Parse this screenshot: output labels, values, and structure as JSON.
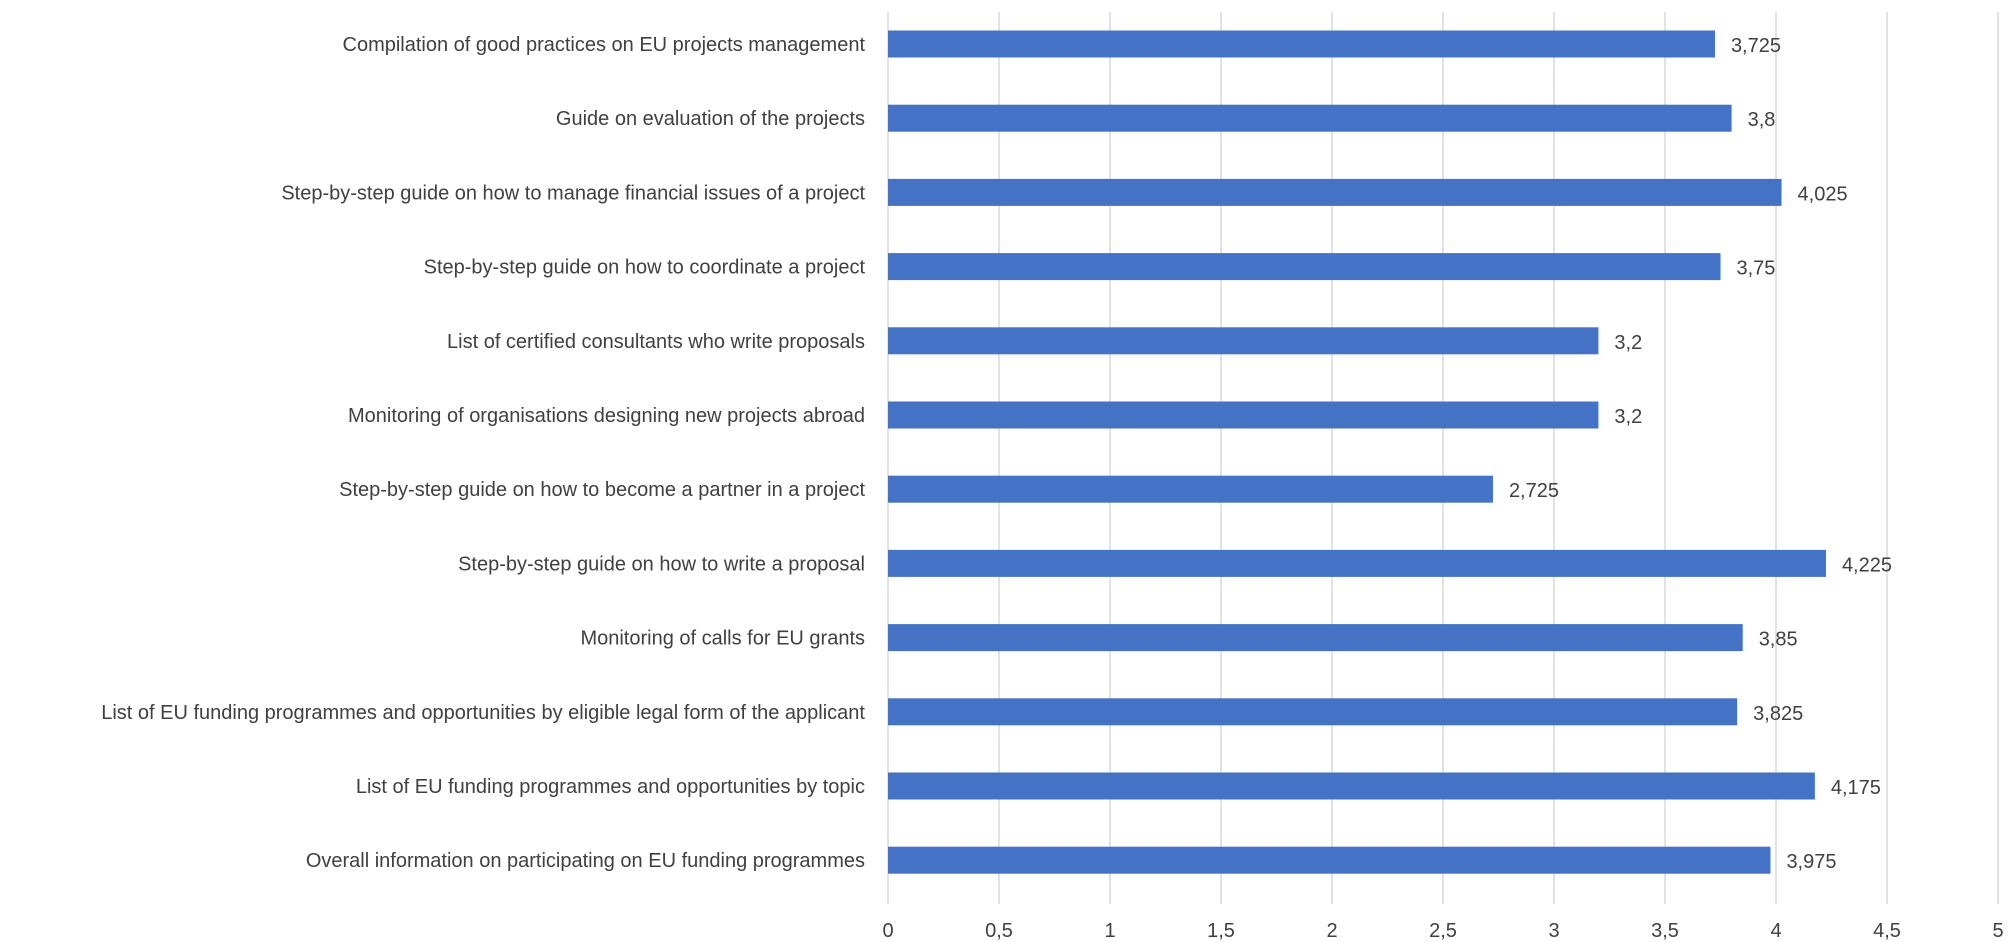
{
  "chart_data": {
    "type": "bar",
    "orientation": "horizontal",
    "categories": [
      "Compilation of good practices on EU projects management",
      "Guide on evaluation of the projects",
      "Step-by-step guide on how to manage financial issues of a project",
      "Step-by-step guide on how to coordinate a project",
      "List of certified consultants who write proposals",
      "Monitoring of organisations designing new projects abroad",
      "Step-by-step guide on how to become a partner in a project",
      "Step-by-step guide on how to write a proposal",
      "Monitoring of calls for EU grants",
      "List of EU funding programmes and opportunities by eligible legal form of the applicant",
      "List of EU funding programmes and opportunities by topic",
      "Overall information on participating on EU funding programmes"
    ],
    "values": [
      3.725,
      3.8,
      4.025,
      3.75,
      3.2,
      3.2,
      2.725,
      4.225,
      3.85,
      3.825,
      4.175,
      3.975
    ],
    "data_labels": [
      "3,725",
      "3,8",
      "4,025",
      "3,75",
      "3,2",
      "3,2",
      "2,725",
      "4,225",
      "3,85",
      "3,825",
      "4,175",
      "3,975"
    ],
    "xticks": [
      0,
      0.5,
      1,
      1.5,
      2,
      2.5,
      3,
      3.5,
      4,
      4.5,
      5
    ],
    "xtick_labels": [
      "0",
      "0,5",
      "1",
      "1,5",
      "2",
      "2,5",
      "3",
      "3,5",
      "4",
      "4,5",
      "5"
    ],
    "xlim": [
      0,
      5
    ],
    "grid": "vertical",
    "legend": "none",
    "bar_color": "#4472c4",
    "title": "",
    "xlabel": "",
    "ylabel": ""
  }
}
